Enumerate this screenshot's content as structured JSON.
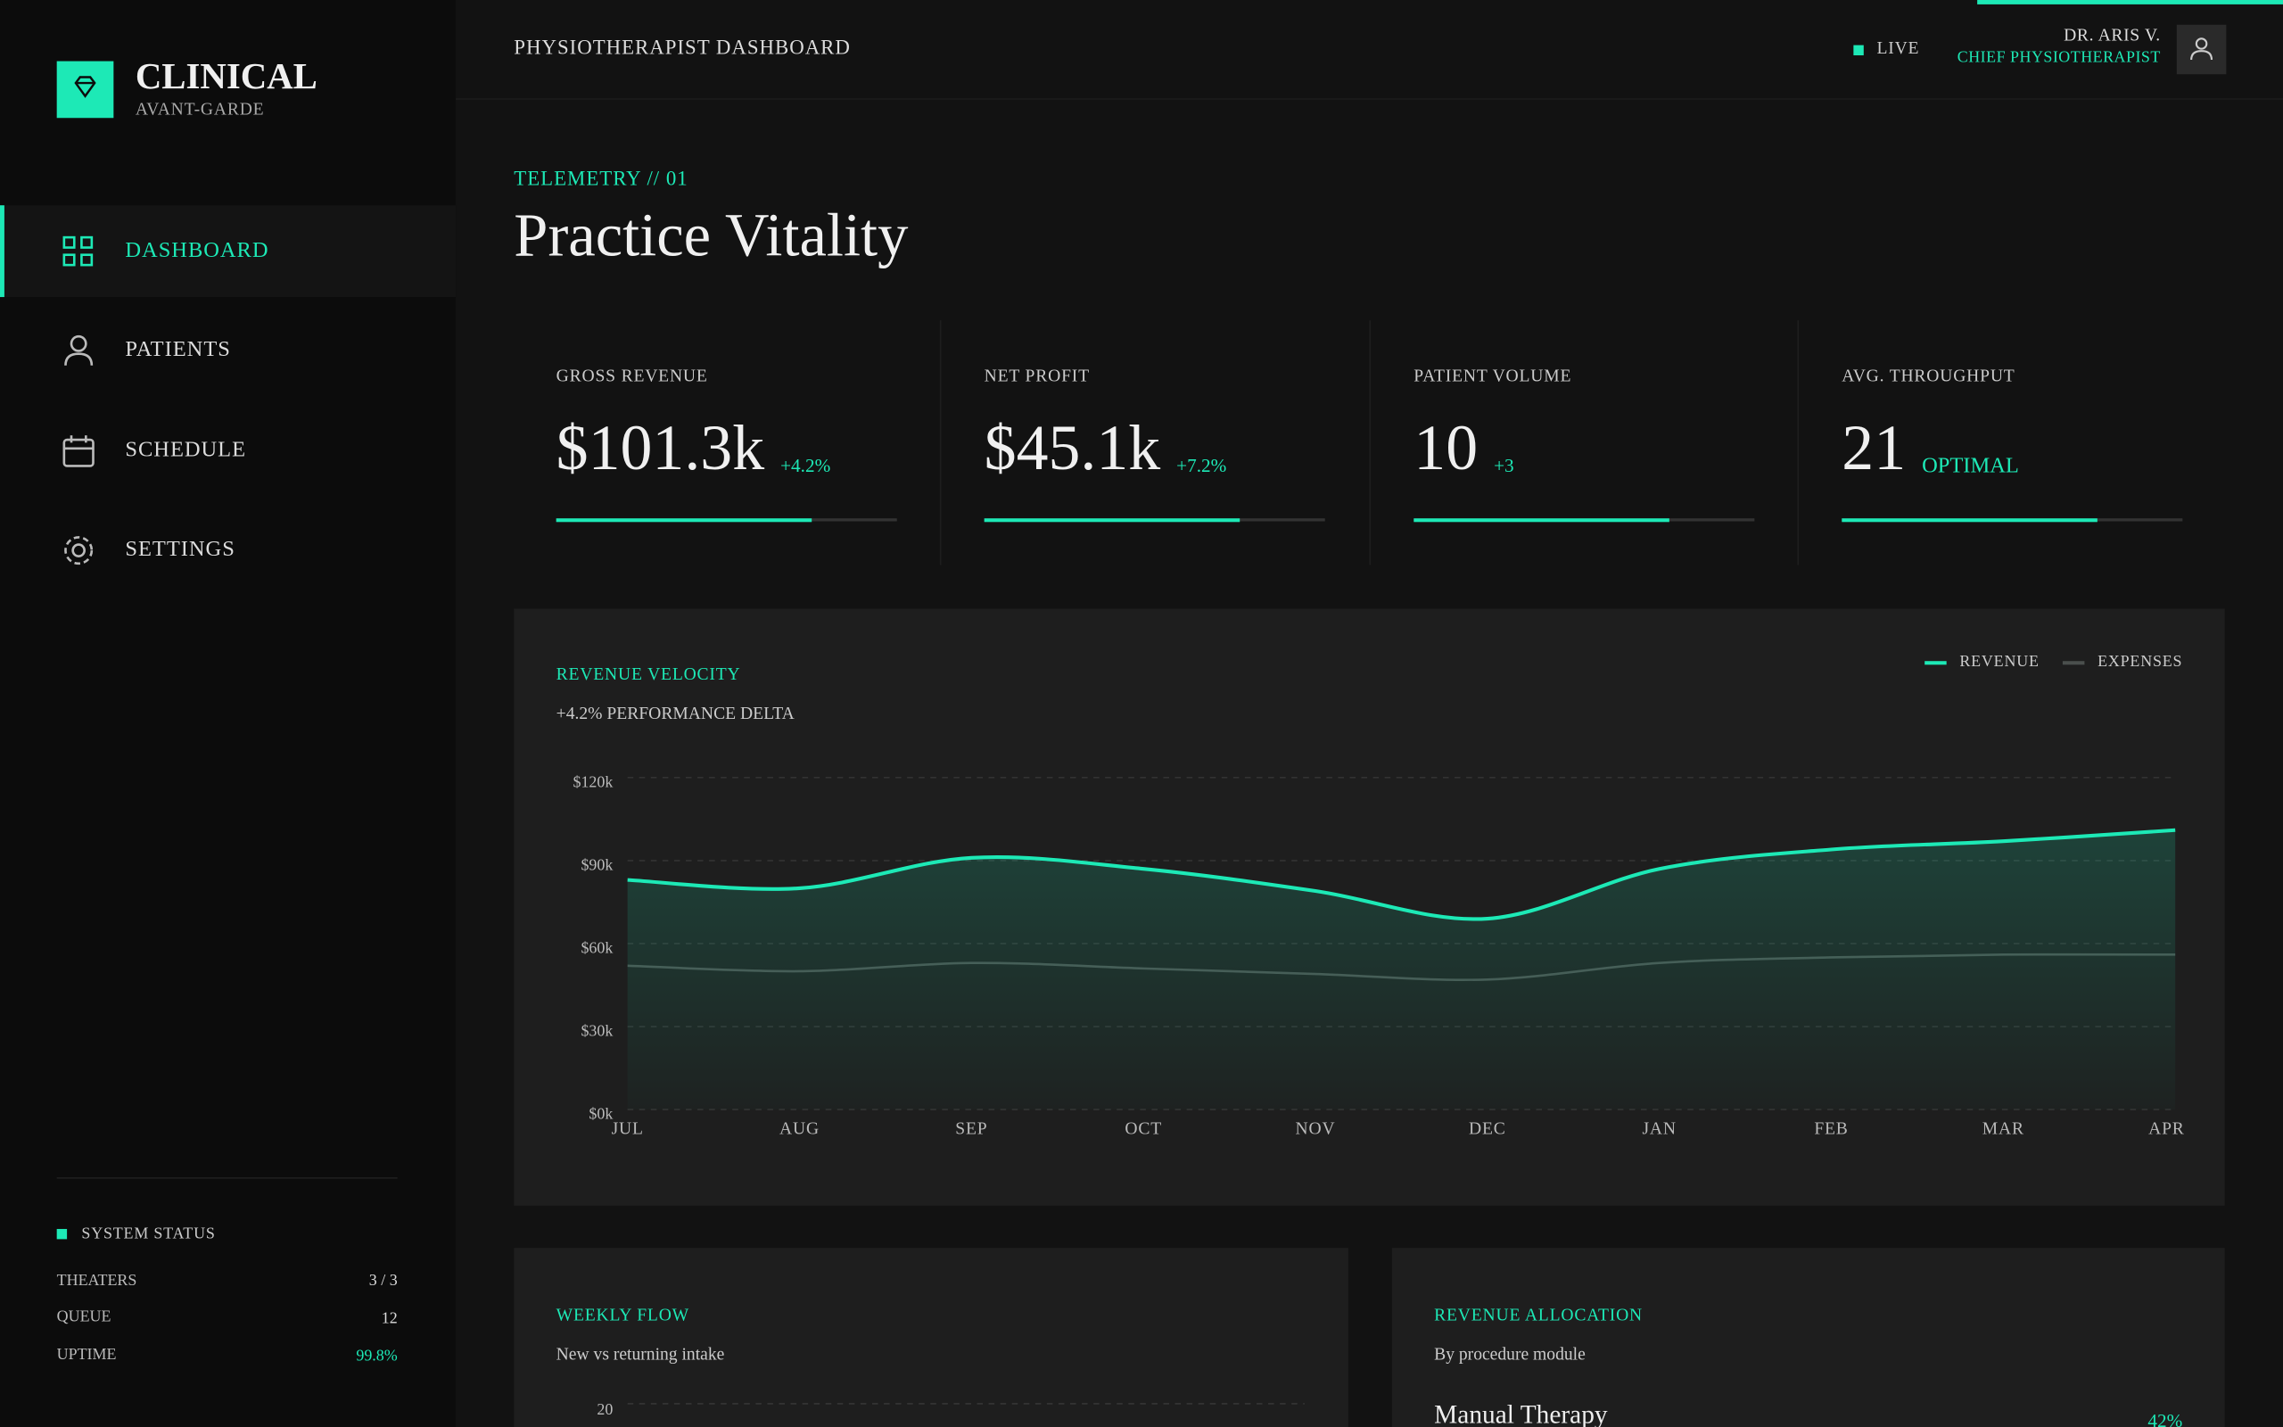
{
  "brand": {
    "name": "CLINICAL",
    "tagline": "AVANT-GARDE"
  },
  "nav": [
    "DASHBOARD",
    "PATIENTS",
    "SCHEDULE",
    "SETTINGS"
  ],
  "status": {
    "title": "SYSTEM STATUS",
    "rows": [
      {
        "label": "THEATERS",
        "value": "3 / 3"
      },
      {
        "label": "QUEUE",
        "value": "12"
      },
      {
        "label": "UPTIME",
        "value": "99.8%"
      }
    ]
  },
  "header": {
    "title": "PHYSIOTHERAPIST DASHBOARD",
    "live": "LIVE",
    "user": "DR. ARIS V.",
    "role": "CHIEF PHYSIOTHERAPIST"
  },
  "section": {
    "eyebrow": "TELEMETRY // 01",
    "title": "Practice Vitality"
  },
  "kpis": [
    {
      "label": "GROSS REVENUE",
      "value": "$101.3k",
      "delta": "+4.2%",
      "progress": 75
    },
    {
      "label": "NET PROFIT",
      "value": "$45.1k",
      "delta": "+7.2%",
      "progress": 75
    },
    {
      "label": "PATIENT VOLUME",
      "value": "10",
      "delta": "+3",
      "progress": 75
    },
    {
      "label": "AVG. THROUGHPUT",
      "value": "21",
      "delta": "OPTIMAL",
      "progress": 75
    }
  ],
  "chart_data": {
    "type": "area",
    "title": "REVENUE VELOCITY",
    "subtitle": "+4.2% PERFORMANCE DELTA",
    "categories": [
      "JUL",
      "AUG",
      "SEP",
      "OCT",
      "NOV",
      "DEC",
      "JAN",
      "FEB",
      "MAR",
      "APR"
    ],
    "series": [
      {
        "name": "REVENUE",
        "color": "#1de9b6",
        "values": [
          83000,
          80000,
          91000,
          87000,
          79000,
          69000,
          87000,
          94000,
          97000,
          101000
        ]
      },
      {
        "name": "EXPENSES",
        "color": "#4a4f4d",
        "values": [
          52000,
          50000,
          53000,
          51000,
          49000,
          47000,
          53000,
          55000,
          56000,
          56000
        ]
      }
    ],
    "ylim": [
      0,
      120000
    ],
    "yticks": [
      {
        "value": 0,
        "label": "$0k"
      },
      {
        "value": 30000,
        "label": "$30k"
      },
      {
        "value": 60000,
        "label": "$60k"
      },
      {
        "value": 90000,
        "label": "$90k"
      },
      {
        "value": 120000,
        "label": "$120k"
      }
    ],
    "grid": true,
    "legend": "top-right"
  },
  "weekly_flow": {
    "title": "WEEKLY FLOW",
    "subtitle": "New vs returning intake",
    "tick": "20"
  },
  "allocation": {
    "title": "REVENUE ALLOCATION",
    "subtitle": "By procedure module",
    "item": "Manual Therapy",
    "share": "42%"
  }
}
